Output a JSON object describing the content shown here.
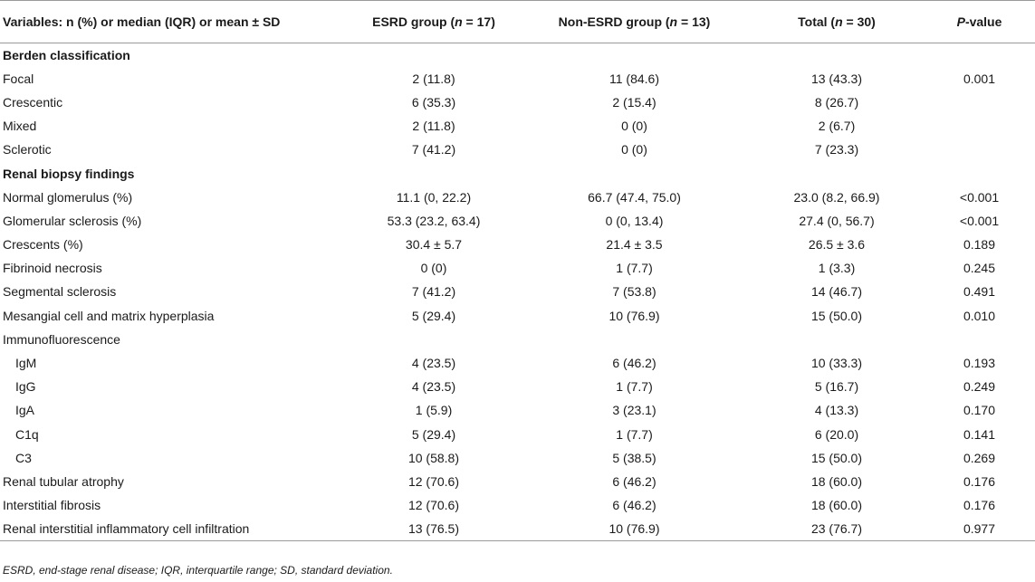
{
  "header": {
    "variables": "Variables: n (%) or median (IQR) or mean ± SD",
    "esrd_prefix": "ESRD group (",
    "esrd_n": "n",
    "esrd_suffix": " = 17)",
    "non_prefix": "Non-ESRD group (",
    "non_n": "n",
    "non_suffix": " = 13)",
    "total_prefix": "Total (",
    "total_n": "n",
    "total_suffix": " = 30)",
    "p_italic": "P",
    "p_suffix": "-value"
  },
  "sections": {
    "berden": "Berden classification",
    "biopsy": "Renal biopsy findings"
  },
  "rows": {
    "focal": {
      "label": "Focal",
      "esrd": "2 (11.8)",
      "non": "11 (84.6)",
      "total": "13 (43.3)",
      "p": "0.001"
    },
    "crescentic": {
      "label": "Crescentic",
      "esrd": "6 (35.3)",
      "non": "2 (15.4)",
      "total": "8 (26.7)",
      "p": ""
    },
    "mixed": {
      "label": "Mixed",
      "esrd": "2 (11.8)",
      "non": "0 (0)",
      "total": "2 (6.7)",
      "p": ""
    },
    "sclerotic": {
      "label": "Sclerotic",
      "esrd": "7 (41.2)",
      "non": "0 (0)",
      "total": "7 (23.3)",
      "p": ""
    },
    "normal_glom": {
      "label": "Normal glomerulus (%)",
      "esrd": "11.1 (0, 22.2)",
      "non": "66.7 (47.4, 75.0)",
      "total": "23.0 (8.2, 66.9)",
      "p": "<0.001"
    },
    "glom_scler": {
      "label": "Glomerular sclerosis (%)",
      "esrd": "53.3 (23.2, 63.4)",
      "non": "0 (0, 13.4)",
      "total": "27.4 (0, 56.7)",
      "p": "<0.001"
    },
    "crescents": {
      "label": "Crescents (%)",
      "esrd": "30.4 ± 5.7",
      "non": "21.4 ± 3.5",
      "total": "26.5 ± 3.6",
      "p": "0.189"
    },
    "fibrinoid": {
      "label": "Fibrinoid necrosis",
      "esrd": "0 (0)",
      "non": "1 (7.7)",
      "total": "1 (3.3)",
      "p": "0.245"
    },
    "segmental": {
      "label": "Segmental sclerosis",
      "esrd": "7 (41.2)",
      "non": "7 (53.8)",
      "total": "14 (46.7)",
      "p": "0.491"
    },
    "mesangial": {
      "label": "Mesangial cell and matrix hyperplasia",
      "esrd": "5 (29.4)",
      "non": "10 (76.9)",
      "total": "15 (50.0)",
      "p": "0.010"
    },
    "immuno": {
      "label": "Immunofluorescence",
      "esrd": "",
      "non": "",
      "total": "",
      "p": ""
    },
    "igm": {
      "label": "IgM",
      "esrd": "4 (23.5)",
      "non": "6 (46.2)",
      "total": "10 (33.3)",
      "p": "0.193"
    },
    "igg": {
      "label": "IgG",
      "esrd": "4 (23.5)",
      "non": "1 (7.7)",
      "total": "5 (16.7)",
      "p": "0.249"
    },
    "iga": {
      "label": "IgA",
      "esrd": "1 (5.9)",
      "non": "3 (23.1)",
      "total": "4 (13.3)",
      "p": "0.170"
    },
    "c1q": {
      "label": "C1q",
      "esrd": "5 (29.4)",
      "non": "1 (7.7)",
      "total": "6 (20.0)",
      "p": "0.141"
    },
    "c3": {
      "label": "C3",
      "esrd": "10 (58.8)",
      "non": "5 (38.5)",
      "total": "15 (50.0)",
      "p": "0.269"
    },
    "tubular": {
      "label": "Renal tubular atrophy",
      "esrd": "12 (70.6)",
      "non": "6 (46.2)",
      "total": "18 (60.0)",
      "p": "0.176"
    },
    "interstitial": {
      "label": "Interstitial fibrosis",
      "esrd": "12 (70.6)",
      "non": "6 (46.2)",
      "total": "18 (60.0)",
      "p": "0.176"
    },
    "infiltration": {
      "label": "Renal interstitial inflammatory cell infiltration",
      "esrd": "13 (76.5)",
      "non": "10 (76.9)",
      "total": "23 (76.7)",
      "p": "0.977"
    }
  },
  "footnote": "ESRD, end-stage renal disease; IQR, interquartile range; SD, standard deviation."
}
